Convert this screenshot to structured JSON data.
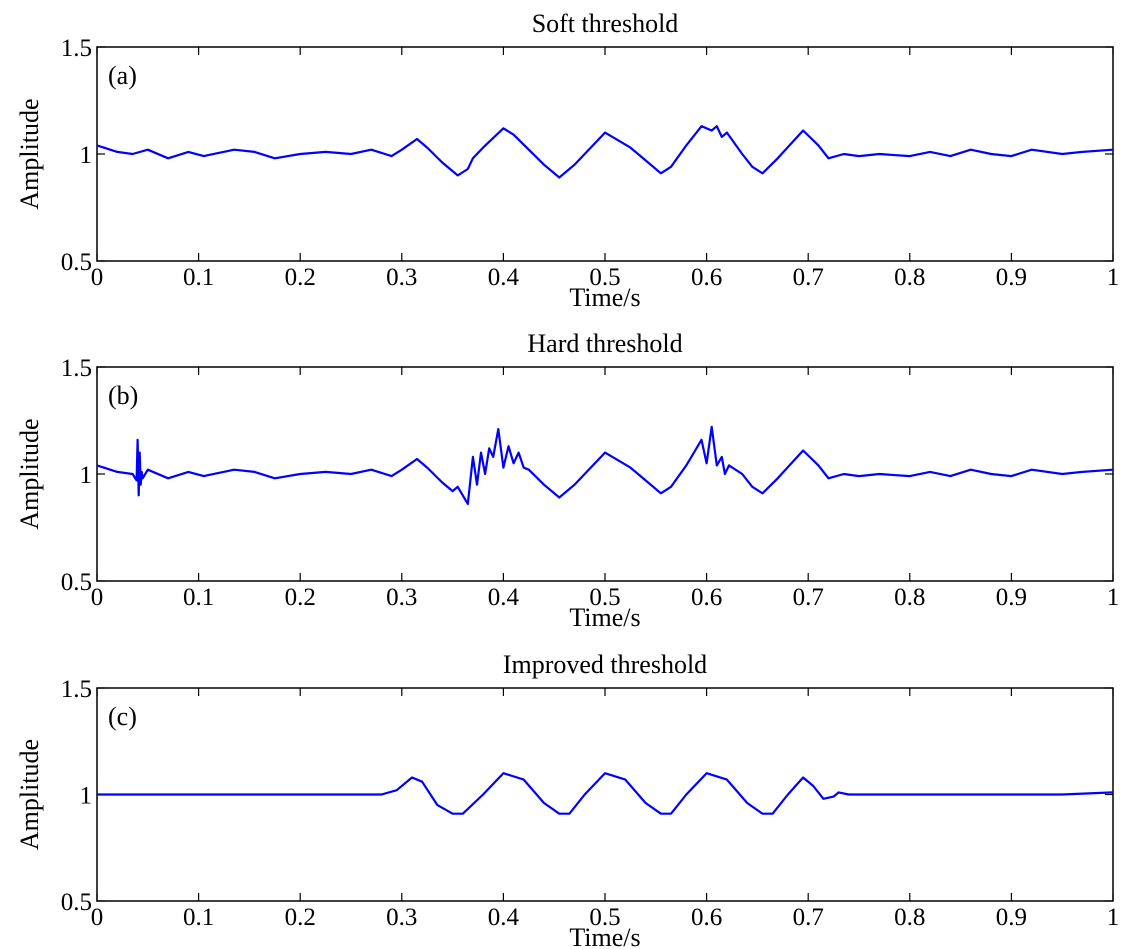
{
  "chart_data": [
    {
      "type": "line",
      "title": "Soft threshold",
      "panel_label": "(a)",
      "xlabel": "Time/s",
      "ylabel": "Amplitude",
      "xlim": [
        0,
        1
      ],
      "ylim": [
        0.5,
        1.5
      ],
      "xticks": [
        "0",
        "0.1",
        "0.2",
        "0.3",
        "0.4",
        "0.5",
        "0.6",
        "0.7",
        "0.8",
        "0.9",
        "1"
      ],
      "yticks": [
        "0.5",
        "1",
        "1.5"
      ],
      "grid": false,
      "color": "#0000ff",
      "x": [
        0,
        0.02,
        0.035,
        0.05,
        0.07,
        0.09,
        0.105,
        0.135,
        0.155,
        0.175,
        0.2,
        0.225,
        0.25,
        0.27,
        0.29,
        0.3,
        0.315,
        0.325,
        0.34,
        0.355,
        0.365,
        0.37,
        0.38,
        0.4,
        0.41,
        0.425,
        0.44,
        0.455,
        0.47,
        0.5,
        0.525,
        0.54,
        0.555,
        0.565,
        0.58,
        0.595,
        0.605,
        0.61,
        0.615,
        0.62,
        0.635,
        0.645,
        0.655,
        0.67,
        0.695,
        0.71,
        0.72,
        0.735,
        0.75,
        0.77,
        0.8,
        0.82,
        0.84,
        0.86,
        0.88,
        0.9,
        0.92,
        0.95,
        0.97,
        1
      ],
      "y": [
        1.04,
        1.01,
        1.0,
        1.02,
        0.98,
        1.01,
        0.99,
        1.02,
        1.01,
        0.98,
        1.0,
        1.01,
        1.0,
        1.02,
        0.99,
        1.02,
        1.07,
        1.03,
        0.96,
        0.9,
        0.93,
        0.98,
        1.03,
        1.12,
        1.09,
        1.02,
        0.95,
        0.89,
        0.95,
        1.1,
        1.03,
        0.97,
        0.91,
        0.94,
        1.04,
        1.13,
        1.11,
        1.13,
        1.08,
        1.1,
        1.0,
        0.94,
        0.91,
        0.98,
        1.11,
        1.04,
        0.98,
        1.0,
        0.99,
        1.0,
        0.99,
        1.01,
        0.99,
        1.02,
        1.0,
        0.99,
        1.02,
        1.0,
        1.01,
        1.02
      ]
    },
    {
      "type": "line",
      "title": "Hard threshold",
      "panel_label": "(b)",
      "xlabel": "Time/s",
      "ylabel": "Amplitude",
      "xlim": [
        0,
        1
      ],
      "ylim": [
        0.5,
        1.5
      ],
      "xticks": [
        "0",
        "0.1",
        "0.2",
        "0.3",
        "0.4",
        "0.5",
        "0.6",
        "0.7",
        "0.8",
        "0.9",
        "1"
      ],
      "yticks": [
        "0.5",
        "1",
        "1.5"
      ],
      "grid": false,
      "color": "#0000ff",
      "x": [
        0,
        0.02,
        0.035,
        0.039,
        0.04,
        0.041,
        0.042,
        0.043,
        0.044,
        0.045,
        0.05,
        0.07,
        0.09,
        0.105,
        0.135,
        0.155,
        0.175,
        0.2,
        0.225,
        0.25,
        0.27,
        0.29,
        0.3,
        0.315,
        0.325,
        0.34,
        0.35,
        0.355,
        0.36,
        0.365,
        0.37,
        0.374,
        0.378,
        0.382,
        0.386,
        0.39,
        0.395,
        0.4,
        0.405,
        0.41,
        0.415,
        0.42,
        0.425,
        0.44,
        0.455,
        0.47,
        0.5,
        0.525,
        0.54,
        0.555,
        0.565,
        0.58,
        0.595,
        0.6,
        0.605,
        0.61,
        0.615,
        0.618,
        0.622,
        0.635,
        0.645,
        0.655,
        0.67,
        0.695,
        0.71,
        0.72,
        0.735,
        0.75,
        0.77,
        0.8,
        0.82,
        0.84,
        0.86,
        0.88,
        0.9,
        0.92,
        0.95,
        0.97,
        1
      ],
      "y": [
        1.04,
        1.01,
        1.0,
        0.97,
        1.16,
        0.9,
        1.1,
        0.95,
        1.01,
        0.98,
        1.02,
        0.98,
        1.01,
        0.99,
        1.02,
        1.01,
        0.98,
        1.0,
        1.01,
        1.0,
        1.02,
        0.99,
        1.02,
        1.07,
        1.03,
        0.96,
        0.92,
        0.94,
        0.9,
        0.86,
        1.08,
        0.95,
        1.1,
        1.0,
        1.12,
        1.08,
        1.21,
        1.03,
        1.13,
        1.05,
        1.1,
        1.03,
        1.02,
        0.95,
        0.89,
        0.95,
        1.1,
        1.03,
        0.97,
        0.91,
        0.94,
        1.04,
        1.16,
        1.05,
        1.22,
        1.04,
        1.08,
        1.0,
        1.04,
        1.0,
        0.94,
        0.91,
        0.98,
        1.11,
        1.04,
        0.98,
        1.0,
        0.99,
        1.0,
        0.99,
        1.01,
        0.99,
        1.02,
        1.0,
        0.99,
        1.02,
        1.0,
        1.01,
        1.02
      ]
    },
    {
      "type": "line",
      "title": "Improved threshold",
      "panel_label": "(c)",
      "xlabel": "Time/s",
      "ylabel": "Amplitude",
      "xlim": [
        0,
        1
      ],
      "ylim": [
        0.5,
        1.5
      ],
      "xticks": [
        "0",
        "0.1",
        "0.2",
        "0.3",
        "0.4",
        "0.5",
        "0.6",
        "0.7",
        "0.8",
        "0.9",
        "1"
      ],
      "yticks": [
        "0.5",
        "1",
        "1.5"
      ],
      "grid": false,
      "color": "#0000ff",
      "x": [
        0,
        0.05,
        0.1,
        0.15,
        0.2,
        0.25,
        0.28,
        0.295,
        0.31,
        0.32,
        0.335,
        0.35,
        0.36,
        0.38,
        0.4,
        0.42,
        0.44,
        0.455,
        0.465,
        0.48,
        0.5,
        0.52,
        0.54,
        0.555,
        0.565,
        0.58,
        0.6,
        0.62,
        0.64,
        0.655,
        0.665,
        0.68,
        0.695,
        0.705,
        0.715,
        0.725,
        0.73,
        0.74,
        0.8,
        0.9,
        0.95,
        1
      ],
      "y": [
        1.0,
        1.0,
        1.0,
        1.0,
        1.0,
        1.0,
        1.0,
        1.02,
        1.08,
        1.06,
        0.95,
        0.91,
        0.91,
        1.0,
        1.1,
        1.07,
        0.96,
        0.91,
        0.91,
        1.0,
        1.1,
        1.07,
        0.96,
        0.91,
        0.91,
        1.0,
        1.1,
        1.07,
        0.96,
        0.91,
        0.91,
        1.0,
        1.08,
        1.04,
        0.98,
        0.99,
        1.01,
        1.0,
        1.0,
        1.0,
        1.0,
        1.01
      ]
    }
  ]
}
